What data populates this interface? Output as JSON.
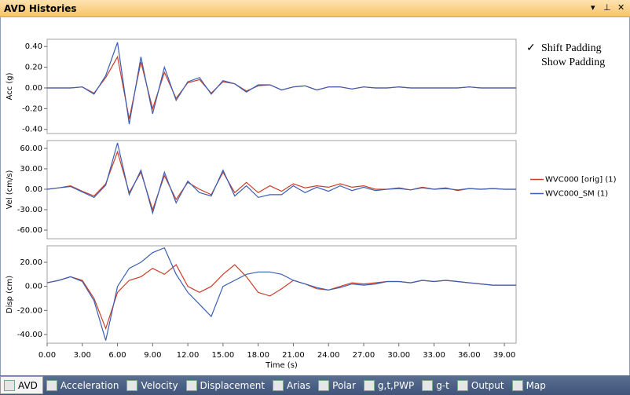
{
  "window": {
    "title": "AVD Histories"
  },
  "menu": [
    "Shift Padding",
    "Show Padding"
  ],
  "tabs": [
    "AVD",
    "Acceleration",
    "Velocity",
    "Displacement",
    "Arias",
    "Polar",
    "g,t,PWP",
    "g-t",
    "Output",
    "Map"
  ],
  "chart_data": [
    {
      "type": "line",
      "y_label": "Acc (g)",
      "x": [
        0,
        1,
        2,
        3,
        4,
        5,
        6,
        7,
        8,
        9,
        10,
        11,
        12,
        13,
        14,
        15,
        16,
        17,
        18,
        19,
        20,
        21,
        22,
        23,
        24,
        25,
        26,
        27,
        28,
        29,
        30,
        31,
        32,
        33,
        34,
        35,
        36,
        37,
        38,
        39,
        40
      ],
      "xlim": [
        0,
        40
      ],
      "ylim": [
        -0.44,
        0.47
      ],
      "yticks": [
        {
          "value": 0.4,
          "label": "0.40"
        },
        {
          "value": 0.2,
          "label": "0.20"
        },
        {
          "value": 0,
          "label": "0.00"
        },
        {
          "value": -0.2,
          "label": "-0.20"
        },
        {
          "value": -0.4,
          "label": "-0.40"
        }
      ],
      "series": [
        {
          "color": "#c8402a",
          "values": [
            0,
            0,
            0,
            0.01,
            -0.05,
            0.1,
            0.3,
            -0.3,
            0.25,
            -0.2,
            0.15,
            -0.1,
            0.05,
            0.08,
            -0.05,
            0.06,
            0.04,
            -0.03,
            0.02,
            0.03,
            -0.02,
            0.01,
            0.02,
            -0.02,
            0.01,
            0.01,
            -0.01,
            0.01,
            0,
            0,
            0.01,
            0,
            0,
            0,
            0,
            0,
            0.01,
            0,
            0,
            0,
            0
          ]
        },
        {
          "color": "#3a5fb5",
          "values": [
            0,
            0,
            0,
            0.01,
            -0.06,
            0.12,
            0.44,
            -0.35,
            0.3,
            -0.25,
            0.2,
            -0.12,
            0.06,
            0.1,
            -0.06,
            0.07,
            0.04,
            -0.04,
            0.03,
            0.03,
            -0.02,
            0.01,
            0.02,
            -0.02,
            0.01,
            0.01,
            -0.01,
            0.01,
            0,
            0,
            0.01,
            0,
            0,
            0,
            0,
            0,
            0.01,
            0,
            0,
            0,
            0
          ]
        }
      ]
    },
    {
      "type": "line",
      "y_label": "Vel (cm/s)",
      "x": [
        0,
        1,
        2,
        3,
        4,
        5,
        6,
        7,
        8,
        9,
        10,
        11,
        12,
        13,
        14,
        15,
        16,
        17,
        18,
        19,
        20,
        21,
        22,
        23,
        24,
        25,
        26,
        27,
        28,
        29,
        30,
        31,
        32,
        33,
        34,
        35,
        36,
        37,
        38,
        39,
        40
      ],
      "xlim": [
        0,
        40
      ],
      "ylim": [
        -72.7,
        71.5
      ],
      "yticks": [
        {
          "value": 60,
          "label": "60.00"
        },
        {
          "value": 30,
          "label": "30.00"
        },
        {
          "value": 0,
          "label": "0.00"
        },
        {
          "value": -30,
          "label": "-30.00"
        },
        {
          "value": -60,
          "label": "-60.00"
        }
      ],
      "legend": true,
      "series": [
        {
          "name": "WVC000 [orig]  (1)",
          "color": "#c8402a",
          "values": [
            0,
            2,
            5,
            -3,
            -10,
            8,
            55,
            -5,
            25,
            -30,
            20,
            -15,
            10,
            0,
            -8,
            25,
            -5,
            10,
            -5,
            5,
            -3,
            8,
            2,
            5,
            3,
            8,
            3,
            5,
            0,
            0,
            2,
            -1,
            3,
            0,
            2,
            -2,
            1,
            0,
            1,
            0,
            0
          ]
        },
        {
          "name": "WVC000_SM (1)",
          "color": "#3a5fb5",
          "values": [
            0,
            2,
            4,
            -4,
            -12,
            6,
            68,
            -8,
            28,
            -35,
            25,
            -20,
            12,
            -5,
            -10,
            28,
            -10,
            5,
            -12,
            -8,
            -8,
            5,
            -5,
            3,
            -3,
            5,
            -2,
            3,
            -2,
            0,
            1,
            -1,
            2,
            0,
            1,
            -1,
            1,
            0,
            1,
            0,
            0
          ]
        }
      ]
    },
    {
      "type": "line",
      "y_label": "Disp (cm)",
      "x_label": "Time (s)",
      "x": [
        0,
        1,
        2,
        3,
        4,
        5,
        6,
        7,
        8,
        9,
        10,
        11,
        12,
        13,
        14,
        15,
        16,
        17,
        18,
        19,
        20,
        21,
        22,
        23,
        24,
        25,
        26,
        27,
        28,
        29,
        30,
        31,
        32,
        33,
        34,
        35,
        36,
        37,
        38,
        39,
        40
      ],
      "xlim": [
        0,
        40
      ],
      "ylim": [
        -47.2,
        33.7
      ],
      "xticks": [
        {
          "value": 0,
          "label": "0.00"
        },
        {
          "value": 3,
          "label": "3.00"
        },
        {
          "value": 6,
          "label": "6.00"
        },
        {
          "value": 9,
          "label": "9.00"
        },
        {
          "value": 12,
          "label": "12.00"
        },
        {
          "value": 15,
          "label": "15.00"
        },
        {
          "value": 18,
          "label": "18.00"
        },
        {
          "value": 21,
          "label": "21.00"
        },
        {
          "value": 24,
          "label": "24.00"
        },
        {
          "value": 27,
          "label": "27.00"
        },
        {
          "value": 30,
          "label": "30.00"
        },
        {
          "value": 33,
          "label": "33.00"
        },
        {
          "value": 36,
          "label": "36.00"
        },
        {
          "value": 39,
          "label": "39.00"
        }
      ],
      "yticks": [
        {
          "value": 20,
          "label": "20.00"
        },
        {
          "value": 0,
          "label": "0.00"
        },
        {
          "value": -20,
          "label": "-20.00"
        },
        {
          "value": -40,
          "label": "-40.00"
        }
      ],
      "series": [
        {
          "color": "#c8402a",
          "values": [
            3,
            5,
            8,
            5,
            -10,
            -35,
            -5,
            5,
            8,
            15,
            10,
            18,
            0,
            -5,
            0,
            10,
            18,
            8,
            -5,
            -8,
            -2,
            5,
            2,
            -2,
            -3,
            0,
            3,
            2,
            3,
            4,
            4,
            3,
            5,
            4,
            5,
            4,
            3,
            2,
            1,
            1,
            1
          ]
        },
        {
          "color": "#3a5fb5",
          "values": [
            3,
            5,
            8,
            4,
            -12,
            -45,
            0,
            15,
            20,
            28,
            32,
            10,
            -5,
            -15,
            -25,
            0,
            5,
            10,
            12,
            12,
            10,
            5,
            2,
            -1,
            -3,
            -1,
            2,
            1,
            2,
            4,
            4,
            3,
            5,
            4,
            5,
            4,
            3,
            2,
            1,
            1,
            1
          ]
        }
      ]
    }
  ]
}
